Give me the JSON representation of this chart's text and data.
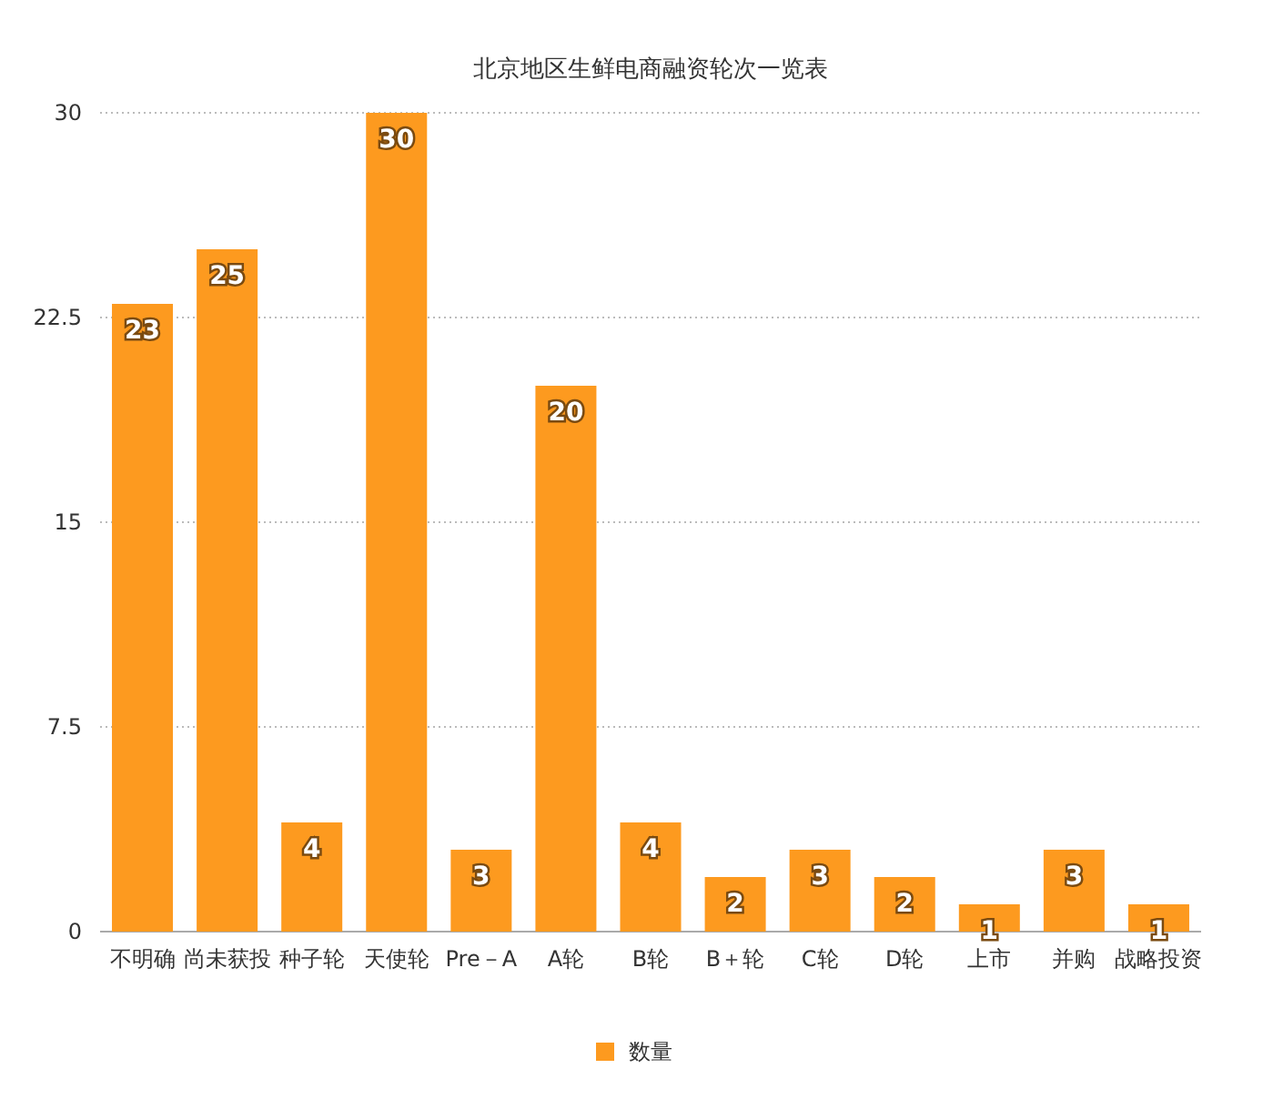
{
  "chart_data": {
    "type": "bar",
    "title": "北京地区生鲜电商融资轮次一览表",
    "categories": [
      "不明确",
      "尚未获投",
      "种子轮",
      "天使轮",
      "Pre－A",
      "A轮",
      "B轮",
      "B＋轮",
      "C轮",
      "D轮",
      "上市",
      "并购",
      "战略投资"
    ],
    "series": [
      {
        "name": "数量",
        "color": "#fd9a1f",
        "values": [
          23,
          25,
          4,
          30,
          3,
          20,
          4,
          2,
          3,
          2,
          1,
          3,
          1
        ]
      }
    ],
    "ylim": [
      0,
      30
    ],
    "yticks": [
      0,
      7.5,
      15,
      22.5,
      30
    ],
    "grid": "y",
    "legend": "bottom",
    "data_labels": true
  }
}
